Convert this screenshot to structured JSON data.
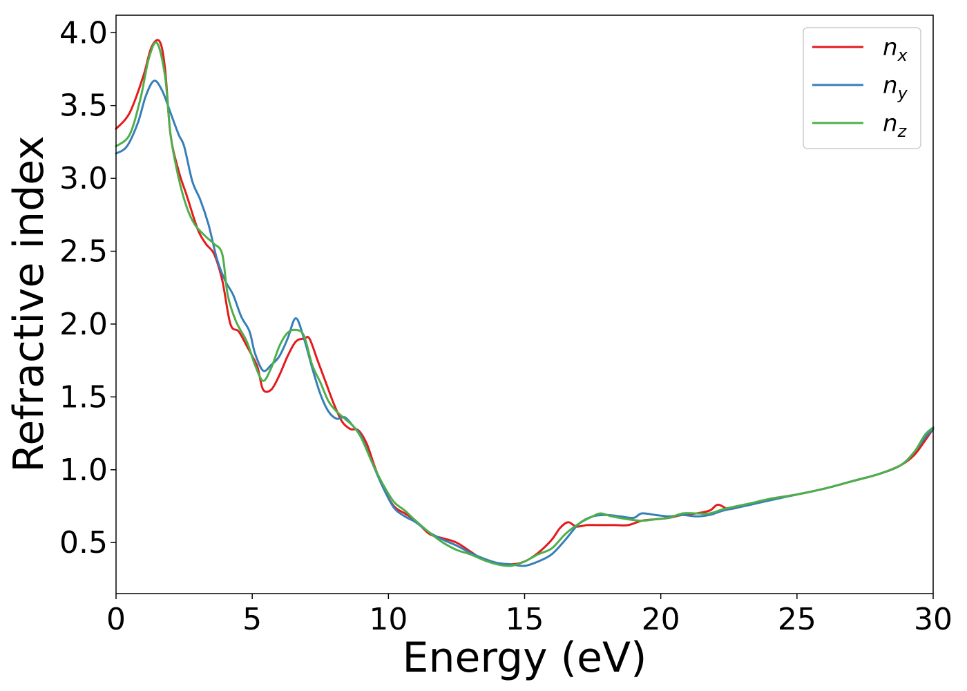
{
  "chart_data": {
    "type": "line",
    "xlabel": "Energy (eV)",
    "ylabel": "Refractive index",
    "xlim": [
      0,
      30
    ],
    "ylim": [
      0.15,
      4.12
    ],
    "xticks": [
      0,
      5,
      10,
      15,
      20,
      25,
      30
    ],
    "yticks": [
      0.5,
      1.0,
      1.5,
      2.0,
      2.5,
      3.0,
      3.5,
      4.0
    ],
    "xtick_labels": [
      "0",
      "5",
      "10",
      "15",
      "20",
      "25",
      "30"
    ],
    "ytick_labels": [
      "0.5",
      "1.0",
      "1.5",
      "2.0",
      "2.5",
      "3.0",
      "3.5",
      "4.0"
    ],
    "grid": false,
    "legend_position": "top-right",
    "series": [
      {
        "name": "n_x",
        "legend_base": "n",
        "legend_sub": "x",
        "color": "#e41a1c",
        "points": [
          [
            0,
            3.34
          ],
          [
            0.5,
            3.45
          ],
          [
            1.0,
            3.7
          ],
          [
            1.3,
            3.9
          ],
          [
            1.6,
            3.94
          ],
          [
            1.8,
            3.75
          ],
          [
            2.0,
            3.3
          ],
          [
            2.3,
            3.05
          ],
          [
            2.6,
            2.88
          ],
          [
            3.0,
            2.65
          ],
          [
            3.3,
            2.55
          ],
          [
            3.6,
            2.48
          ],
          [
            3.9,
            2.3
          ],
          [
            4.2,
            2.0
          ],
          [
            4.5,
            1.95
          ],
          [
            4.8,
            1.85
          ],
          [
            5.0,
            1.78
          ],
          [
            5.2,
            1.7
          ],
          [
            5.4,
            1.55
          ],
          [
            5.7,
            1.55
          ],
          [
            6.0,
            1.65
          ],
          [
            6.3,
            1.78
          ],
          [
            6.6,
            1.88
          ],
          [
            6.9,
            1.9
          ],
          [
            7.1,
            1.9
          ],
          [
            7.4,
            1.75
          ],
          [
            7.7,
            1.6
          ],
          [
            8.0,
            1.45
          ],
          [
            8.3,
            1.33
          ],
          [
            8.6,
            1.28
          ],
          [
            8.9,
            1.27
          ],
          [
            9.2,
            1.18
          ],
          [
            9.5,
            1.02
          ],
          [
            9.8,
            0.88
          ],
          [
            10.2,
            0.75
          ],
          [
            10.6,
            0.7
          ],
          [
            11.0,
            0.65
          ],
          [
            11.5,
            0.56
          ],
          [
            12.0,
            0.53
          ],
          [
            12.5,
            0.5
          ],
          [
            13.0,
            0.44
          ],
          [
            13.5,
            0.38
          ],
          [
            14.0,
            0.36
          ],
          [
            14.5,
            0.35
          ],
          [
            15.0,
            0.37
          ],
          [
            15.5,
            0.43
          ],
          [
            16.0,
            0.52
          ],
          [
            16.3,
            0.6
          ],
          [
            16.6,
            0.64
          ],
          [
            16.9,
            0.61
          ],
          [
            17.3,
            0.62
          ],
          [
            17.8,
            0.62
          ],
          [
            18.3,
            0.62
          ],
          [
            18.8,
            0.62
          ],
          [
            19.3,
            0.65
          ],
          [
            19.8,
            0.66
          ],
          [
            20.3,
            0.67
          ],
          [
            20.8,
            0.69
          ],
          [
            21.3,
            0.7
          ],
          [
            21.8,
            0.72
          ],
          [
            22.1,
            0.76
          ],
          [
            22.5,
            0.73
          ],
          [
            23.0,
            0.75
          ],
          [
            23.5,
            0.77
          ],
          [
            24.0,
            0.8
          ],
          [
            25.0,
            0.83
          ],
          [
            26.0,
            0.87
          ],
          [
            27.0,
            0.92
          ],
          [
            28.0,
            0.97
          ],
          [
            28.8,
            1.03
          ],
          [
            29.3,
            1.1
          ],
          [
            29.7,
            1.2
          ],
          [
            30.0,
            1.28
          ]
        ]
      },
      {
        "name": "n_y",
        "legend_base": "n",
        "legend_sub": "y",
        "color": "#377eb8",
        "points": [
          [
            0,
            3.17
          ],
          [
            0.4,
            3.22
          ],
          [
            0.8,
            3.38
          ],
          [
            1.1,
            3.57
          ],
          [
            1.4,
            3.67
          ],
          [
            1.7,
            3.6
          ],
          [
            2.0,
            3.45
          ],
          [
            2.3,
            3.3
          ],
          [
            2.5,
            3.22
          ],
          [
            2.8,
            2.98
          ],
          [
            3.1,
            2.85
          ],
          [
            3.4,
            2.68
          ],
          [
            3.7,
            2.45
          ],
          [
            4.0,
            2.3
          ],
          [
            4.3,
            2.2
          ],
          [
            4.6,
            2.05
          ],
          [
            4.9,
            1.95
          ],
          [
            5.1,
            1.8
          ],
          [
            5.4,
            1.68
          ],
          [
            5.7,
            1.72
          ],
          [
            6.0,
            1.78
          ],
          [
            6.3,
            1.9
          ],
          [
            6.6,
            2.04
          ],
          [
            6.9,
            1.9
          ],
          [
            7.2,
            1.7
          ],
          [
            7.5,
            1.52
          ],
          [
            7.8,
            1.4
          ],
          [
            8.1,
            1.35
          ],
          [
            8.4,
            1.36
          ],
          [
            8.7,
            1.3
          ],
          [
            9.0,
            1.23
          ],
          [
            9.4,
            1.05
          ],
          [
            9.8,
            0.88
          ],
          [
            10.2,
            0.74
          ],
          [
            10.6,
            0.68
          ],
          [
            11.0,
            0.64
          ],
          [
            11.5,
            0.57
          ],
          [
            12.0,
            0.52
          ],
          [
            12.5,
            0.48
          ],
          [
            13.0,
            0.43
          ],
          [
            13.5,
            0.39
          ],
          [
            14.0,
            0.36
          ],
          [
            14.5,
            0.35
          ],
          [
            15.0,
            0.34
          ],
          [
            15.5,
            0.37
          ],
          [
            16.0,
            0.42
          ],
          [
            16.5,
            0.52
          ],
          [
            17.0,
            0.63
          ],
          [
            17.5,
            0.68
          ],
          [
            18.0,
            0.69
          ],
          [
            18.5,
            0.68
          ],
          [
            19.0,
            0.67
          ],
          [
            19.3,
            0.7
          ],
          [
            19.8,
            0.69
          ],
          [
            20.3,
            0.68
          ],
          [
            20.8,
            0.69
          ],
          [
            21.3,
            0.68
          ],
          [
            21.8,
            0.69
          ],
          [
            22.3,
            0.72
          ],
          [
            22.8,
            0.74
          ],
          [
            23.3,
            0.76
          ],
          [
            24.0,
            0.79
          ],
          [
            25.0,
            0.83
          ],
          [
            26.0,
            0.87
          ],
          [
            27.0,
            0.92
          ],
          [
            28.0,
            0.97
          ],
          [
            28.8,
            1.03
          ],
          [
            29.3,
            1.12
          ],
          [
            29.7,
            1.22
          ],
          [
            30.0,
            1.28
          ]
        ]
      },
      {
        "name": "n_z",
        "legend_base": "n",
        "legend_sub": "z",
        "color": "#4daf4a",
        "points": [
          [
            0,
            3.22
          ],
          [
            0.5,
            3.3
          ],
          [
            0.9,
            3.55
          ],
          [
            1.2,
            3.82
          ],
          [
            1.5,
            3.93
          ],
          [
            1.8,
            3.7
          ],
          [
            2.0,
            3.3
          ],
          [
            2.3,
            3.0
          ],
          [
            2.6,
            2.8
          ],
          [
            2.9,
            2.68
          ],
          [
            3.3,
            2.6
          ],
          [
            3.6,
            2.55
          ],
          [
            3.9,
            2.48
          ],
          [
            4.1,
            2.2
          ],
          [
            4.4,
            2.02
          ],
          [
            4.8,
            1.88
          ],
          [
            5.1,
            1.72
          ],
          [
            5.4,
            1.61
          ],
          [
            5.7,
            1.7
          ],
          [
            6.0,
            1.85
          ],
          [
            6.3,
            1.94
          ],
          [
            6.6,
            1.96
          ],
          [
            6.9,
            1.92
          ],
          [
            7.2,
            1.72
          ],
          [
            7.5,
            1.6
          ],
          [
            7.8,
            1.47
          ],
          [
            8.1,
            1.4
          ],
          [
            8.4,
            1.35
          ],
          [
            8.7,
            1.3
          ],
          [
            9.0,
            1.22
          ],
          [
            9.4,
            1.05
          ],
          [
            9.8,
            0.9
          ],
          [
            10.2,
            0.78
          ],
          [
            10.6,
            0.72
          ],
          [
            11.0,
            0.65
          ],
          [
            11.5,
            0.57
          ],
          [
            12.0,
            0.5
          ],
          [
            12.5,
            0.45
          ],
          [
            13.0,
            0.42
          ],
          [
            13.5,
            0.38
          ],
          [
            14.0,
            0.35
          ],
          [
            14.5,
            0.34
          ],
          [
            15.0,
            0.37
          ],
          [
            15.5,
            0.42
          ],
          [
            16.0,
            0.46
          ],
          [
            16.5,
            0.56
          ],
          [
            17.0,
            0.63
          ],
          [
            17.5,
            0.68
          ],
          [
            17.8,
            0.7
          ],
          [
            18.2,
            0.68
          ],
          [
            18.8,
            0.66
          ],
          [
            19.3,
            0.65
          ],
          [
            19.8,
            0.66
          ],
          [
            20.3,
            0.67
          ],
          [
            20.8,
            0.7
          ],
          [
            21.3,
            0.7
          ],
          [
            21.8,
            0.7
          ],
          [
            22.3,
            0.73
          ],
          [
            22.8,
            0.75
          ],
          [
            23.3,
            0.77
          ],
          [
            24.0,
            0.8
          ],
          [
            25.0,
            0.83
          ],
          [
            26.0,
            0.87
          ],
          [
            27.0,
            0.92
          ],
          [
            28.0,
            0.97
          ],
          [
            28.8,
            1.03
          ],
          [
            29.3,
            1.12
          ],
          [
            29.7,
            1.24
          ],
          [
            30.0,
            1.29
          ]
        ]
      }
    ]
  }
}
